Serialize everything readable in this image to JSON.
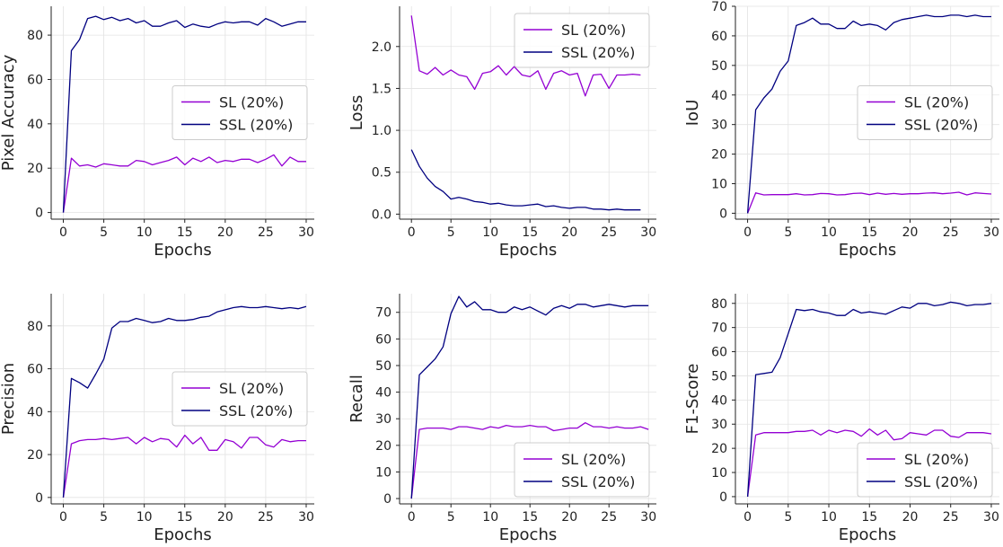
{
  "figure": {
    "colors": {
      "sl": "#9400D3",
      "ssl": "#000080",
      "grid": "#e3e3e3",
      "axis": "#222222"
    }
  },
  "chart_data": [
    {
      "type": "line",
      "xlabel": "Epochs",
      "ylabel": "Pixel Accuracy",
      "xlim": [
        -1.5,
        31
      ],
      "ylim": [
        -3,
        93
      ],
      "xticks": [
        0,
        5,
        10,
        15,
        20,
        25,
        30
      ],
      "yticks": [
        0,
        20,
        40,
        60,
        80
      ],
      "legend_position": "right",
      "series": [
        {
          "name": "SL (20%)",
          "color": "#9400D3",
          "x": [
            0,
            1,
            2,
            3,
            4,
            5,
            6,
            7,
            8,
            9,
            10,
            11,
            12,
            13,
            14,
            15,
            16,
            17,
            18,
            19,
            20,
            21,
            22,
            23,
            24,
            25,
            26,
            27,
            28,
            29,
            30
          ],
          "values": [
            0,
            24.5,
            21,
            21.5,
            20.5,
            22,
            21.5,
            21,
            21,
            23.5,
            23,
            21.5,
            22.5,
            23.5,
            25,
            21.5,
            24.5,
            23,
            25,
            22.5,
            23.5,
            23,
            24,
            24,
            22.5,
            24,
            26,
            21,
            25,
            23,
            23
          ]
        },
        {
          "name": "SSL (20%)",
          "color": "#000080",
          "x": [
            0,
            1,
            2,
            3,
            4,
            5,
            6,
            7,
            8,
            9,
            10,
            11,
            12,
            13,
            14,
            15,
            16,
            17,
            18,
            19,
            20,
            21,
            22,
            23,
            24,
            25,
            26,
            27,
            28,
            29,
            30
          ],
          "values": [
            0,
            73,
            78,
            87.5,
            88.5,
            87,
            88,
            86.5,
            87.5,
            85.5,
            86.5,
            84,
            84,
            85.5,
            86.5,
            83.5,
            85,
            84,
            83.5,
            85,
            86,
            85.5,
            86,
            86,
            84.5,
            87.5,
            86,
            84,
            85,
            86,
            86
          ]
        }
      ]
    },
    {
      "type": "line",
      "xlabel": "Epochs",
      "ylabel": "Loss",
      "xlim": [
        -1.5,
        31
      ],
      "ylim": [
        -0.06,
        2.48
      ],
      "xticks": [
        0,
        5,
        10,
        15,
        20,
        25,
        30
      ],
      "yticks": [
        "0.0",
        "0.5",
        "1.0",
        "1.5",
        "2.0"
      ],
      "legend_position": "top-right",
      "series": [
        {
          "name": "SL (20%)",
          "color": "#9400D3",
          "x": [
            0,
            1,
            2,
            3,
            4,
            5,
            6,
            7,
            8,
            9,
            10,
            11,
            12,
            13,
            14,
            15,
            16,
            17,
            18,
            19,
            20,
            21,
            22,
            23,
            24,
            25,
            26,
            27,
            28,
            29
          ],
          "values": [
            2.37,
            1.71,
            1.67,
            1.75,
            1.66,
            1.72,
            1.66,
            1.64,
            1.49,
            1.68,
            1.7,
            1.77,
            1.66,
            1.76,
            1.66,
            1.64,
            1.71,
            1.49,
            1.68,
            1.71,
            1.66,
            1.68,
            1.41,
            1.66,
            1.67,
            1.5,
            1.66,
            1.66,
            1.67,
            1.66
          ]
        },
        {
          "name": "SSL (20%)",
          "color": "#000080",
          "x": [
            0,
            1,
            2,
            3,
            4,
            5,
            6,
            7,
            8,
            9,
            10,
            11,
            12,
            13,
            14,
            15,
            16,
            17,
            18,
            19,
            20,
            21,
            22,
            23,
            24,
            25,
            26,
            27,
            28,
            29
          ],
          "values": [
            0.77,
            0.57,
            0.43,
            0.33,
            0.27,
            0.18,
            0.2,
            0.18,
            0.15,
            0.14,
            0.12,
            0.13,
            0.11,
            0.1,
            0.1,
            0.11,
            0.12,
            0.09,
            0.1,
            0.08,
            0.07,
            0.08,
            0.08,
            0.06,
            0.06,
            0.05,
            0.06,
            0.05,
            0.05,
            0.05
          ]
        }
      ]
    },
    {
      "type": "line",
      "xlabel": "Epochs",
      "ylabel": "IoU",
      "xlim": [
        -1.5,
        31
      ],
      "ylim": [
        -2,
        70
      ],
      "xticks": [
        0,
        5,
        10,
        15,
        20,
        25,
        30
      ],
      "yticks": [
        0,
        10,
        20,
        30,
        40,
        50,
        60,
        70
      ],
      "legend_position": "right",
      "series": [
        {
          "name": "SL (20%)",
          "color": "#9400D3",
          "x": [
            0,
            1,
            2,
            3,
            4,
            5,
            6,
            7,
            8,
            9,
            10,
            11,
            12,
            13,
            14,
            15,
            16,
            17,
            18,
            19,
            20,
            21,
            22,
            23,
            24,
            25,
            26,
            27,
            28,
            29,
            30
          ],
          "values": [
            0,
            6.9,
            6.2,
            6.3,
            6.3,
            6.3,
            6.6,
            6.2,
            6.3,
            6.7,
            6.6,
            6.2,
            6.3,
            6.7,
            6.8,
            6.3,
            6.8,
            6.4,
            6.7,
            6.4,
            6.6,
            6.6,
            6.8,
            6.9,
            6.6,
            6.8,
            7.1,
            6.2,
            6.9,
            6.7,
            6.5
          ]
        },
        {
          "name": "SSL (20%)",
          "color": "#000080",
          "x": [
            0,
            1,
            2,
            3,
            4,
            5,
            6,
            7,
            8,
            9,
            10,
            11,
            12,
            13,
            14,
            15,
            16,
            17,
            18,
            19,
            20,
            21,
            22,
            23,
            24,
            25,
            26,
            27,
            28,
            29,
            30
          ],
          "values": [
            0,
            35,
            39,
            42,
            48,
            51.5,
            63.5,
            64.5,
            66,
            64,
            64,
            62.5,
            62.5,
            65,
            63.5,
            64,
            63.5,
            62,
            64.5,
            65.5,
            66,
            66.5,
            67,
            66.5,
            66.5,
            67,
            67,
            66.5,
            67,
            66.5,
            66.5
          ]
        }
      ]
    },
    {
      "type": "line",
      "xlabel": "Epochs",
      "ylabel": "Precision",
      "xlim": [
        -1.5,
        31
      ],
      "ylim": [
        -3,
        95
      ],
      "xticks": [
        0,
        5,
        10,
        15,
        20,
        25,
        30
      ],
      "yticks": [
        0,
        20,
        40,
        60,
        80
      ],
      "legend_position": "right",
      "series": [
        {
          "name": "SL (20%)",
          "color": "#9400D3",
          "x": [
            0,
            1,
            2,
            3,
            4,
            5,
            6,
            7,
            8,
            9,
            10,
            11,
            12,
            13,
            14,
            15,
            16,
            17,
            18,
            19,
            20,
            21,
            22,
            23,
            24,
            25,
            26,
            27,
            28,
            29,
            30
          ],
          "values": [
            0,
            25,
            26.5,
            27,
            27,
            27.5,
            27,
            27.5,
            28,
            25,
            28,
            26,
            27.5,
            27,
            23.5,
            29,
            25,
            28,
            22,
            22,
            27,
            26,
            23,
            28,
            28,
            24.5,
            23.5,
            27,
            26,
            26.5,
            26.5
          ]
        },
        {
          "name": "SSL (20%)",
          "color": "#000080",
          "x": [
            0,
            1,
            2,
            3,
            4,
            5,
            6,
            7,
            8,
            9,
            10,
            11,
            12,
            13,
            14,
            15,
            16,
            17,
            18,
            19,
            20,
            21,
            22,
            23,
            24,
            25,
            26,
            27,
            28,
            29,
            30
          ],
          "values": [
            0,
            55.5,
            53.5,
            51,
            57.5,
            64.5,
            79,
            82,
            82,
            83.5,
            82.5,
            81.5,
            82,
            83.5,
            82.5,
            82.5,
            83,
            84,
            84.5,
            86.5,
            87.5,
            88.5,
            89,
            88.5,
            88.5,
            89,
            88.5,
            88,
            88.5,
            88,
            89
          ]
        }
      ]
    },
    {
      "type": "line",
      "xlabel": "Epochs",
      "ylabel": "Recall",
      "xlim": [
        -1.5,
        31
      ],
      "ylim": [
        -2,
        77
      ],
      "xticks": [
        0,
        5,
        10,
        15,
        20,
        25,
        30
      ],
      "yticks": [
        0,
        10,
        20,
        30,
        40,
        50,
        60,
        70
      ],
      "legend_position": "bottom-right",
      "series": [
        {
          "name": "SL (20%)",
          "color": "#9400D3",
          "x": [
            0,
            1,
            2,
            3,
            4,
            5,
            6,
            7,
            8,
            9,
            10,
            11,
            12,
            13,
            14,
            15,
            16,
            17,
            18,
            19,
            20,
            21,
            22,
            23,
            24,
            25,
            26,
            27,
            28,
            29,
            30
          ],
          "values": [
            0,
            26,
            26.5,
            26.5,
            26.5,
            26,
            27,
            27,
            26.5,
            26,
            27,
            26.5,
            27.5,
            27,
            27,
            27.5,
            27,
            27,
            25.5,
            26,
            26.5,
            26.5,
            28.5,
            27,
            27,
            26.5,
            27,
            26.5,
            26.5,
            27,
            26
          ]
        },
        {
          "name": "SSL (20%)",
          "color": "#000080",
          "x": [
            0,
            1,
            2,
            3,
            4,
            5,
            6,
            7,
            8,
            9,
            10,
            11,
            12,
            13,
            14,
            15,
            16,
            17,
            18,
            19,
            20,
            21,
            22,
            23,
            24,
            25,
            26,
            27,
            28,
            29,
            30
          ],
          "values": [
            0,
            46.5,
            49.5,
            52.5,
            57,
            69.5,
            76,
            72,
            74,
            71,
            71,
            70,
            70,
            72,
            71,
            72,
            70.5,
            69,
            71.5,
            72.5,
            71.5,
            73,
            73,
            72,
            72.5,
            73,
            72.5,
            72,
            72.5,
            72.5,
            72.5
          ]
        }
      ]
    },
    {
      "type": "line",
      "xlabel": "Epochs",
      "ylabel": "F1-Score",
      "xlim": [
        -1.5,
        31
      ],
      "ylim": [
        -3,
        84
      ],
      "xticks": [
        0,
        5,
        10,
        15,
        20,
        25,
        30
      ],
      "yticks": [
        0,
        10,
        20,
        30,
        40,
        50,
        60,
        70,
        80
      ],
      "legend_position": "bottom-right",
      "series": [
        {
          "name": "SL (20%)",
          "color": "#9400D3",
          "x": [
            0,
            1,
            2,
            3,
            4,
            5,
            6,
            7,
            8,
            9,
            10,
            11,
            12,
            13,
            14,
            15,
            16,
            17,
            18,
            19,
            20,
            21,
            22,
            23,
            24,
            25,
            26,
            27,
            28,
            29,
            30
          ],
          "values": [
            0,
            25.5,
            26.5,
            26.5,
            26.5,
            26.5,
            27,
            27,
            27.5,
            25.5,
            27.5,
            26.5,
            27.5,
            27,
            25,
            28,
            25.5,
            27.5,
            23.5,
            24,
            26.5,
            26,
            25.5,
            27.5,
            27.5,
            25,
            24.5,
            26.5,
            26.5,
            26.5,
            26
          ]
        },
        {
          "name": "SSL (20%)",
          "color": "#000080",
          "x": [
            0,
            1,
            2,
            3,
            4,
            5,
            6,
            7,
            8,
            9,
            10,
            11,
            12,
            13,
            14,
            15,
            16,
            17,
            18,
            19,
            20,
            21,
            22,
            23,
            24,
            25,
            26,
            27,
            28,
            29,
            30
          ],
          "values": [
            0,
            50.5,
            51,
            51.5,
            57.5,
            67.5,
            77.5,
            77,
            77.5,
            76.5,
            76,
            75,
            75,
            77.5,
            76,
            76.5,
            76,
            75.5,
            77,
            78.5,
            78,
            80,
            80,
            79,
            79.5,
            80.5,
            80,
            79,
            79.5,
            79.5,
            80
          ]
        }
      ]
    }
  ]
}
